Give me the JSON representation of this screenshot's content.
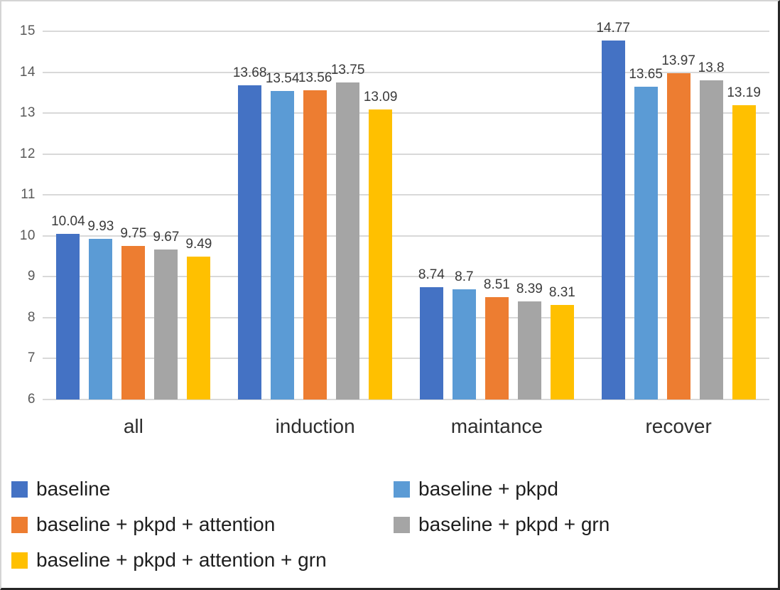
{
  "chart_data": {
    "type": "bar",
    "title": "",
    "xlabel": "",
    "ylabel": "",
    "categories": [
      "all",
      "induction",
      "maintance",
      "recover"
    ],
    "series": [
      {
        "name": "baseline",
        "color": "#4472C4",
        "values": [
          10.04,
          13.68,
          8.74,
          14.77
        ],
        "labels": [
          "10.04",
          "13.68",
          "8.74",
          "14.77"
        ]
      },
      {
        "name": "baseline + pkpd",
        "color": "#5B9BD5",
        "values": [
          9.93,
          13.54,
          8.7,
          13.65
        ],
        "labels": [
          "9.93",
          "13.54",
          "8.7",
          "13.65"
        ]
      },
      {
        "name": "baseline + pkpd + attention",
        "color": "#ED7D31",
        "values": [
          9.75,
          13.56,
          8.51,
          13.97
        ],
        "labels": [
          "9.75",
          "13.56",
          "8.51",
          "13.97"
        ]
      },
      {
        "name": "baseline + pkpd + grn",
        "color": "#A5A5A5",
        "values": [
          9.67,
          13.75,
          8.39,
          13.8
        ],
        "labels": [
          "9.67",
          "13.75",
          "8.39",
          "13.8"
        ]
      },
      {
        "name": "baseline + pkpd + attention + grn",
        "color": "#FFC000",
        "values": [
          9.49,
          13.09,
          8.31,
          13.19
        ],
        "labels": [
          "9.49",
          "13.09",
          "8.31",
          "13.19"
        ]
      }
    ],
    "ylim": [
      6,
      15
    ],
    "y_ticks": [
      "15",
      "14",
      "13",
      "12",
      "11",
      "10",
      "9",
      "8",
      "7",
      "6"
    ],
    "grid": true,
    "gridline_color": "#D9D9D9",
    "legend_position": "bottom-two-columns",
    "legend_order_row_major": [
      "baseline",
      "baseline + pkpd",
      "baseline + pkpd + attention",
      "baseline + pkpd + grn",
      "baseline + pkpd + attention + grn"
    ]
  }
}
